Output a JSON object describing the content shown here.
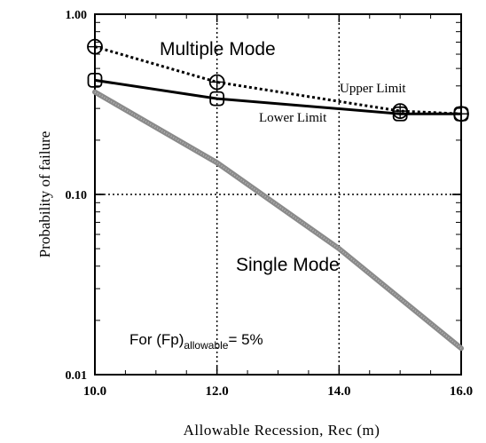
{
  "chart_data": {
    "type": "line",
    "xlabel": "Allowable Recession, Rec (m)",
    "ylabel": "Probability of failure",
    "xlim": [
      10,
      16
    ],
    "ylim": [
      0.01,
      1.0
    ],
    "yscale": "log",
    "x_ticks": [
      "10.0",
      "12.0",
      "14.0",
      "16.0"
    ],
    "y_ticks": [
      "0.01",
      "0.10",
      "1.00"
    ],
    "grid": "dotted at x=12, x=14 and y=0.10",
    "series": [
      {
        "name": "Upper Limit",
        "style": "dotted",
        "marker": "circle-plus",
        "x": [
          10,
          12,
          15,
          16
        ],
        "y": [
          0.66,
          0.42,
          0.29,
          0.28
        ]
      },
      {
        "name": "Lower Limit",
        "style": "solid",
        "marker": "square",
        "x": [
          10,
          12,
          15,
          16
        ],
        "y": [
          0.43,
          0.34,
          0.28,
          0.28
        ]
      },
      {
        "name": "Single Mode",
        "style": "thick-gray",
        "marker": "none",
        "x": [
          10,
          12,
          14,
          16
        ],
        "y": [
          0.37,
          0.15,
          0.05,
          0.014
        ]
      }
    ],
    "annotations": {
      "multiple_mode": "Multiple Mode",
      "single_mode": "Single Mode",
      "note_prefix": "For (Fp)",
      "note_subscript": "allowable",
      "note_suffix": "= 5%"
    },
    "colors": {
      "upper": "#000000",
      "lower": "#000000",
      "single": "#8a8a8a"
    }
  }
}
